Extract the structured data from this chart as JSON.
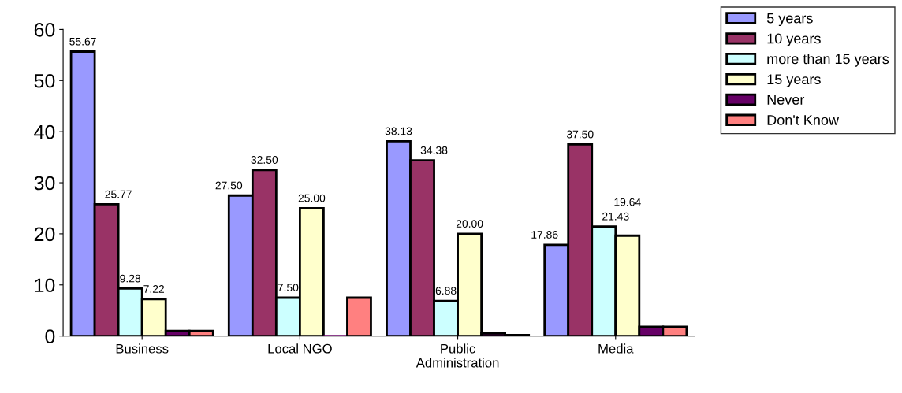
{
  "chart_data": {
    "type": "bar",
    "categories": [
      "Business",
      "Local NGO",
      "Public\nAdministration",
      "Media"
    ],
    "series": [
      {
        "name": "5 years",
        "color": "#9999ff",
        "values": [
          55.67,
          27.5,
          38.13,
          17.86
        ],
        "value_labels": [
          "55.67",
          "27.50",
          "38.13",
          "17.86"
        ]
      },
      {
        "name": "10 years",
        "color": "#993366",
        "values": [
          25.77,
          32.5,
          34.38,
          37.5
        ],
        "value_labels": [
          "25.77",
          "32.50",
          "34.38",
          "37.50"
        ]
      },
      {
        "name": "more than 15 years",
        "color": "#ccffff",
        "values": [
          9.28,
          7.5,
          6.88,
          21.43
        ],
        "value_labels": [
          "9.28",
          "7.50",
          "6.88",
          "21.43"
        ]
      },
      {
        "name": "15 years",
        "color": "#ffffcc",
        "values": [
          7.22,
          25.0,
          20.0,
          19.64
        ],
        "value_labels": [
          "7.22",
          "25.00",
          "20.00",
          "19.64"
        ]
      },
      {
        "name": "Never",
        "color": "#660066",
        "values": [
          1.0,
          0,
          0.5,
          1.8
        ]
      },
      {
        "name": "Don't Know",
        "color": "#ff8080",
        "values": [
          1.0,
          7.5,
          0.2,
          1.8
        ]
      }
    ],
    "ylim": [
      0,
      60
    ],
    "yticks": [
      0,
      10,
      20,
      30,
      40,
      50,
      60
    ],
    "grid": false,
    "legend": "top right"
  }
}
